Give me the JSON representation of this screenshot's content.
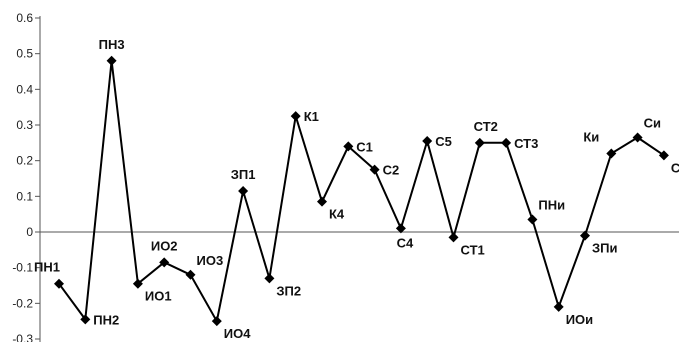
{
  "chart_data": {
    "type": "line",
    "title": "",
    "xlabel": "",
    "ylabel": "",
    "ylim": [
      -0.3,
      0.6
    ],
    "y_ticks": [
      "0.6",
      "0.5",
      "0.4",
      "0.3",
      "0.2",
      "0.1",
      "0",
      "-0.1",
      "-0.2",
      "-0.3"
    ],
    "y_tick_values": [
      0.6,
      0.5,
      0.4,
      0.3,
      0.2,
      0.1,
      0,
      -0.1,
      -0.2,
      -0.3
    ],
    "grid": false,
    "marker": "diamond",
    "categories": [
      "ПН1",
      "ПН2",
      "ПН3",
      "ИО1",
      "ИО2",
      "ИО3",
      "ИО4",
      "ЗП1",
      "ЗП2",
      "К1",
      "К4",
      "С1",
      "С2",
      "С4",
      "С5",
      "СТ1",
      "СТ2",
      "СТ3",
      "ПНи",
      "ИОи",
      "ЗПи",
      "Ки",
      "Си",
      "СТи"
    ],
    "values": [
      -0.145,
      -0.245,
      0.48,
      -0.145,
      -0.085,
      -0.12,
      -0.25,
      0.115,
      -0.13,
      0.325,
      0.085,
      0.24,
      0.175,
      0.01,
      0.255,
      -0.015,
      0.25,
      0.25,
      0.035,
      -0.21,
      -0.01,
      0.22,
      0.265,
      0.215
    ],
    "label_positions": [
      "above",
      "right",
      "above",
      "below-right",
      "above",
      "above-right",
      "below-right",
      "above",
      "below-right",
      "right",
      "below-right",
      "right",
      "right",
      "below",
      "right",
      "below-right",
      "above",
      "right",
      "above-right",
      "below-right",
      "below-right",
      "left",
      "above-right",
      "below-right"
    ]
  }
}
